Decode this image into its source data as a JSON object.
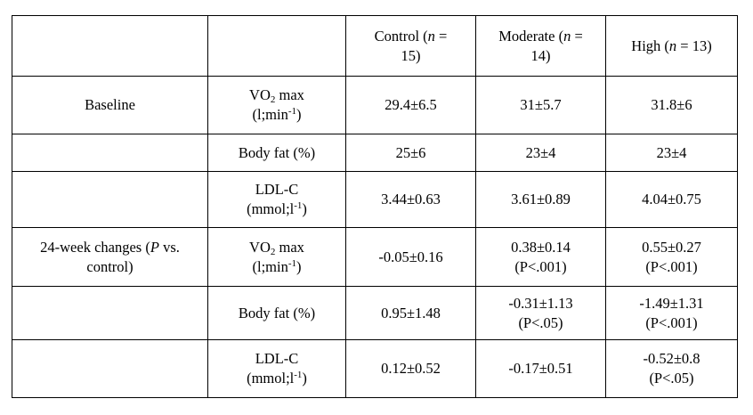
{
  "header": {
    "col1": "",
    "col2": "",
    "control_pre": "Control (",
    "control_n": "n",
    "control_post1": " =",
    "control_post2": "15)",
    "moderate_pre": "Moderate (",
    "moderate_n": "n",
    "moderate_post1": " =",
    "moderate_post2": "14)",
    "high_pre": "High (",
    "high_n": "n",
    "high_post": " = 13)"
  },
  "labels": {
    "baseline": "Baseline",
    "changes_pre": "24-week changes (",
    "changes_p": "P",
    "changes_post1": " vs.",
    "changes_post2": "control)",
    "vo2_a": "VO",
    "vo2_sub": "2",
    "vo2_b": " max",
    "vo2_unit_a": "(l;min",
    "vo2_unit_sup": "-1",
    "vo2_unit_b": ")",
    "bodyfat": "Body fat (%)",
    "ldl": "LDL-C",
    "ldl_unit_a": "(mmol;l",
    "ldl_unit_sup": "-1",
    "ldl_unit_b": ")"
  },
  "rows": {
    "b_vo2": [
      "29.4±6.5",
      "31±5.7",
      "31.8±6"
    ],
    "b_fat": [
      "25±6",
      "23±4",
      "23±4"
    ],
    "b_ldl": [
      "3.44±0.63",
      "3.61±0.89",
      "4.04±0.75"
    ],
    "c_vo2": {
      "control": "-0.05±0.16",
      "moderate": "0.38±0.14",
      "moderate_p": "(P<.001)",
      "high": "0.55±0.27",
      "high_p": "(P<.001)"
    },
    "c_fat": {
      "control": "0.95±1.48",
      "moderate": "-0.31±1.13",
      "moderate_p": "(P<.05)",
      "high": "-1.49±1.31",
      "high_p": "(P<.001)"
    },
    "c_ldl": {
      "control": "0.12±0.52",
      "moderate": "-0.17±0.51",
      "high": "-0.52±0.8",
      "high_p": "(P<.05)"
    }
  }
}
